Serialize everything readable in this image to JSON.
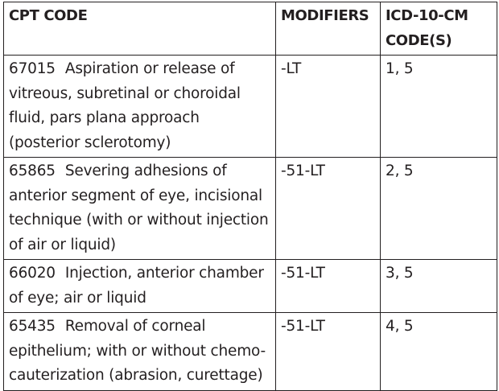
{
  "headers": {
    "cpt": "CPT CODE",
    "modifiers": "MODIFIERS",
    "icd": "ICD-10-CM CODE(S)"
  },
  "rows": [
    {
      "code": "67015",
      "description": "Aspiration or release of vitreous, subretinal or choroidal fluid, pars plana approach (posterior sclerotomy)",
      "modifiers": "-LT",
      "icd": "1, 5"
    },
    {
      "code": "65865",
      "description": "Severing adhesions of anterior segment of eye, incisional technique (with or without injection of air or liquid)",
      "modifiers": "-51-LT",
      "icd": "2, 5"
    },
    {
      "code": "66020",
      "description": "Injection, anterior chamber of eye; air or liquid",
      "modifiers": "-51-LT",
      "icd": "3, 5"
    },
    {
      "code": "65435",
      "description": "Removal of corneal epithelium; with or without chemo-cauterization (abrasion, curettage)",
      "modifiers": "-51-LT",
      "icd": "4, 5"
    }
  ]
}
